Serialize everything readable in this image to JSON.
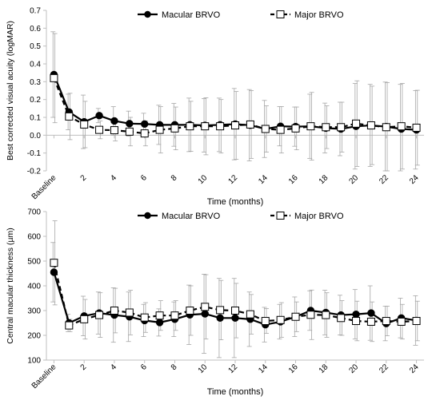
{
  "chart_data": [
    {
      "type": "line",
      "ylabel": "Best corrected visual acuity (logMAR)",
      "xlabel": "Time (months)",
      "ylim": [
        -0.2,
        0.7
      ],
      "yticks": [
        -0.2,
        -0.1,
        0,
        0.1,
        0.2,
        0.3,
        0.4,
        0.5,
        0.6,
        0.7
      ],
      "grid": false,
      "legend_position": "top",
      "x": [
        "Baseline",
        1,
        2,
        3,
        4,
        5,
        6,
        7,
        8,
        9,
        10,
        11,
        12,
        13,
        14,
        15,
        16,
        17,
        18,
        19,
        20,
        21,
        22,
        23,
        24
      ],
      "xtick_labels": [
        "Baseline",
        "2",
        "4",
        "6",
        "8",
        "10",
        "12",
        "14",
        "16",
        "18",
        "20",
        "22",
        "24"
      ],
      "series": [
        {
          "name": "Macular BRVO",
          "marker": "filled-circle",
          "line": "solid",
          "values": [
            0.34,
            0.13,
            0.075,
            0.11,
            0.08,
            0.065,
            0.063,
            0.058,
            0.058,
            0.058,
            0.055,
            0.058,
            0.062,
            0.056,
            0.035,
            0.05,
            0.048,
            0.05,
            0.04,
            0.035,
            0.05,
            0.055,
            0.048,
            0.035,
            0.03
          ],
          "error": [
            0.24,
            0.1,
            0.15,
            0.04,
            0.08,
            0.07,
            0.06,
            0.11,
            0.12,
            0.15,
            0.15,
            0.15,
            0.2,
            0.2,
            0.16,
            0.11,
            0.11,
            0.18,
            0.14,
            0.15,
            0.24,
            0.23,
            0.25,
            0.25,
            0.22
          ]
        },
        {
          "name": "Major BRVO",
          "marker": "open-square",
          "line": "dashed",
          "values": [
            0.32,
            0.105,
            0.06,
            0.03,
            0.028,
            0.02,
            0.01,
            0.03,
            0.038,
            0.05,
            0.05,
            0.05,
            0.055,
            0.06,
            0.035,
            0.03,
            0.038,
            0.05,
            0.045,
            0.045,
            0.065,
            0.055,
            0.045,
            0.05,
            0.042
          ],
          "error": [
            0.25,
            0.13,
            0.13,
            0.05,
            0.06,
            0.08,
            0.07,
            0.13,
            0.12,
            0.14,
            0.16,
            0.15,
            0.19,
            0.19,
            0.13,
            0.13,
            0.12,
            0.19,
            0.12,
            0.14,
            0.24,
            0.22,
            0.25,
            0.24,
            0.21
          ]
        }
      ]
    },
    {
      "type": "line",
      "ylabel": "Central macular thickness (µm)",
      "xlabel": "Time (months)",
      "ylim": [
        100,
        700
      ],
      "yticks": [
        100,
        200,
        300,
        400,
        500,
        600,
        700
      ],
      "grid": false,
      "legend_position": "top",
      "x": [
        "Baseline",
        1,
        2,
        3,
        4,
        5,
        6,
        7,
        8,
        9,
        10,
        11,
        12,
        13,
        14,
        15,
        16,
        17,
        18,
        19,
        20,
        21,
        22,
        23,
        24
      ],
      "xtick_labels": [
        "Baseline",
        "2",
        "4",
        "6",
        "8",
        "10",
        "12",
        "14",
        "16",
        "18",
        "20",
        "22",
        "24"
      ],
      "series": [
        {
          "name": "Macular BRVO",
          "marker": "filled-circle",
          "line": "solid",
          "values": [
            455,
            250,
            278,
            290,
            282,
            275,
            260,
            252,
            265,
            283,
            287,
            270,
            270,
            265,
            243,
            255,
            275,
            300,
            292,
            282,
            285,
            290,
            248,
            270,
            260
          ],
          "error": [
            120,
            35,
            80,
            85,
            110,
            100,
            65,
            55,
            70,
            120,
            160,
            160,
            160,
            110,
            70,
            70,
            80,
            80,
            90,
            80,
            100,
            110,
            70,
            80,
            100
          ]
        },
        {
          "name": "Major BRVO",
          "marker": "open-square",
          "line": "dashed",
          "values": [
            493,
            240,
            265,
            282,
            300,
            292,
            272,
            280,
            280,
            300,
            315,
            302,
            300,
            285,
            258,
            262,
            275,
            283,
            282,
            270,
            258,
            255,
            258,
            255,
            258
          ],
          "error": [
            170,
            25,
            80,
            90,
            90,
            90,
            60,
            60,
            60,
            100,
            130,
            120,
            110,
            80,
            50,
            70,
            60,
            100,
            90,
            70,
            80,
            80,
            60,
            70,
            80
          ]
        }
      ]
    }
  ]
}
